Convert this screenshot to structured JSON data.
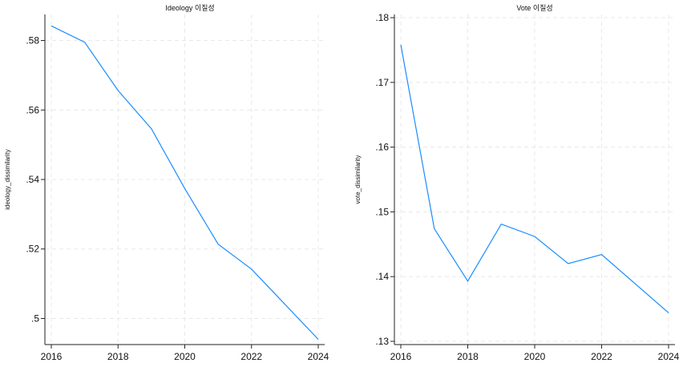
{
  "chart_data": [
    {
      "type": "line",
      "title": "Ideology 이질성",
      "xlabel": "",
      "ylabel": "ideology_dissimilarity",
      "x": [
        2016,
        2017,
        2018,
        2019,
        2020,
        2021,
        2022,
        2023,
        2024
      ],
      "values": [
        0.5842,
        0.5795,
        0.5656,
        0.5546,
        0.5374,
        0.5214,
        0.5142,
        0.5041,
        0.494
      ],
      "xlim": [
        2016,
        2024
      ],
      "ylim": [
        0.4925,
        0.5875
      ],
      "xticks": [
        2016,
        2018,
        2020,
        2022,
        2024
      ],
      "xtick_labels": [
        "2016",
        "2018",
        "2020",
        "2022",
        "2024"
      ],
      "yticks": [
        0.5,
        0.52,
        0.54,
        0.56,
        0.58
      ],
      "ytick_labels": [
        ".5",
        ".52",
        ".54",
        ".56",
        ".58"
      ],
      "grid": true,
      "line_color": "#1a8cff"
    },
    {
      "type": "line",
      "title": "Vote 이질성",
      "xlabel": "",
      "ylabel": "vote_dissimilarity",
      "x": [
        2016,
        2017,
        2018,
        2019,
        2020,
        2021,
        2022,
        2023,
        2024
      ],
      "values": [
        0.1758,
        0.1474,
        0.1393,
        0.1481,
        0.1462,
        0.142,
        0.1434,
        0.1389,
        0.1344
      ],
      "xlim": [
        2016,
        2024
      ],
      "ylim": [
        0.1295,
        0.1805
      ],
      "xticks": [
        2016,
        2018,
        2020,
        2022,
        2024
      ],
      "xtick_labels": [
        "2016",
        "2018",
        "2020",
        "2022",
        "2024"
      ],
      "yticks": [
        0.13,
        0.14,
        0.15,
        0.16,
        0.17,
        0.18
      ],
      "ytick_labels": [
        ".13",
        ".14",
        ".15",
        ".16",
        ".17",
        ".18"
      ],
      "grid": true,
      "line_color": "#1a8cff"
    }
  ]
}
